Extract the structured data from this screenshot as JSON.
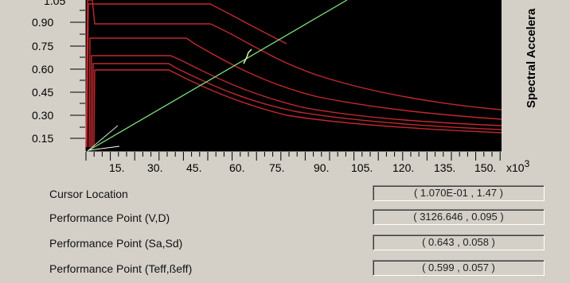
{
  "plot": {
    "y_ticks": [
      "0.90",
      "0.75",
      "0.60",
      "0.45",
      "0.30",
      "0.15"
    ],
    "y_top_partial": "1.05",
    "x_ticks": [
      "15.",
      "30.",
      "45.",
      "60.",
      "75.",
      "90.",
      "105.",
      "120.",
      "135.",
      "150."
    ],
    "x_multiplier": "x10",
    "x_multiplier_exp": "3",
    "ylabel": "Spectral Accelera",
    "colors": {
      "background": "#000000",
      "demand_curves": "#c0282f",
      "capacity_line": "#7ee07e",
      "panel": "#d4d0c8"
    }
  },
  "info": [
    {
      "label": "Cursor Location",
      "value": "( 1.070E-01 , 1.47 )"
    },
    {
      "label": "Performance Point (V,D)",
      "value": "( 3126.646 , 0.095 )"
    },
    {
      "label": "Performance Point (Sa,Sd)",
      "value": "( 0.643 , 0.058 )"
    },
    {
      "label": "Performance Point (Teff,ßeff)",
      "value": "( 0.599 , 0.057 )"
    }
  ]
}
